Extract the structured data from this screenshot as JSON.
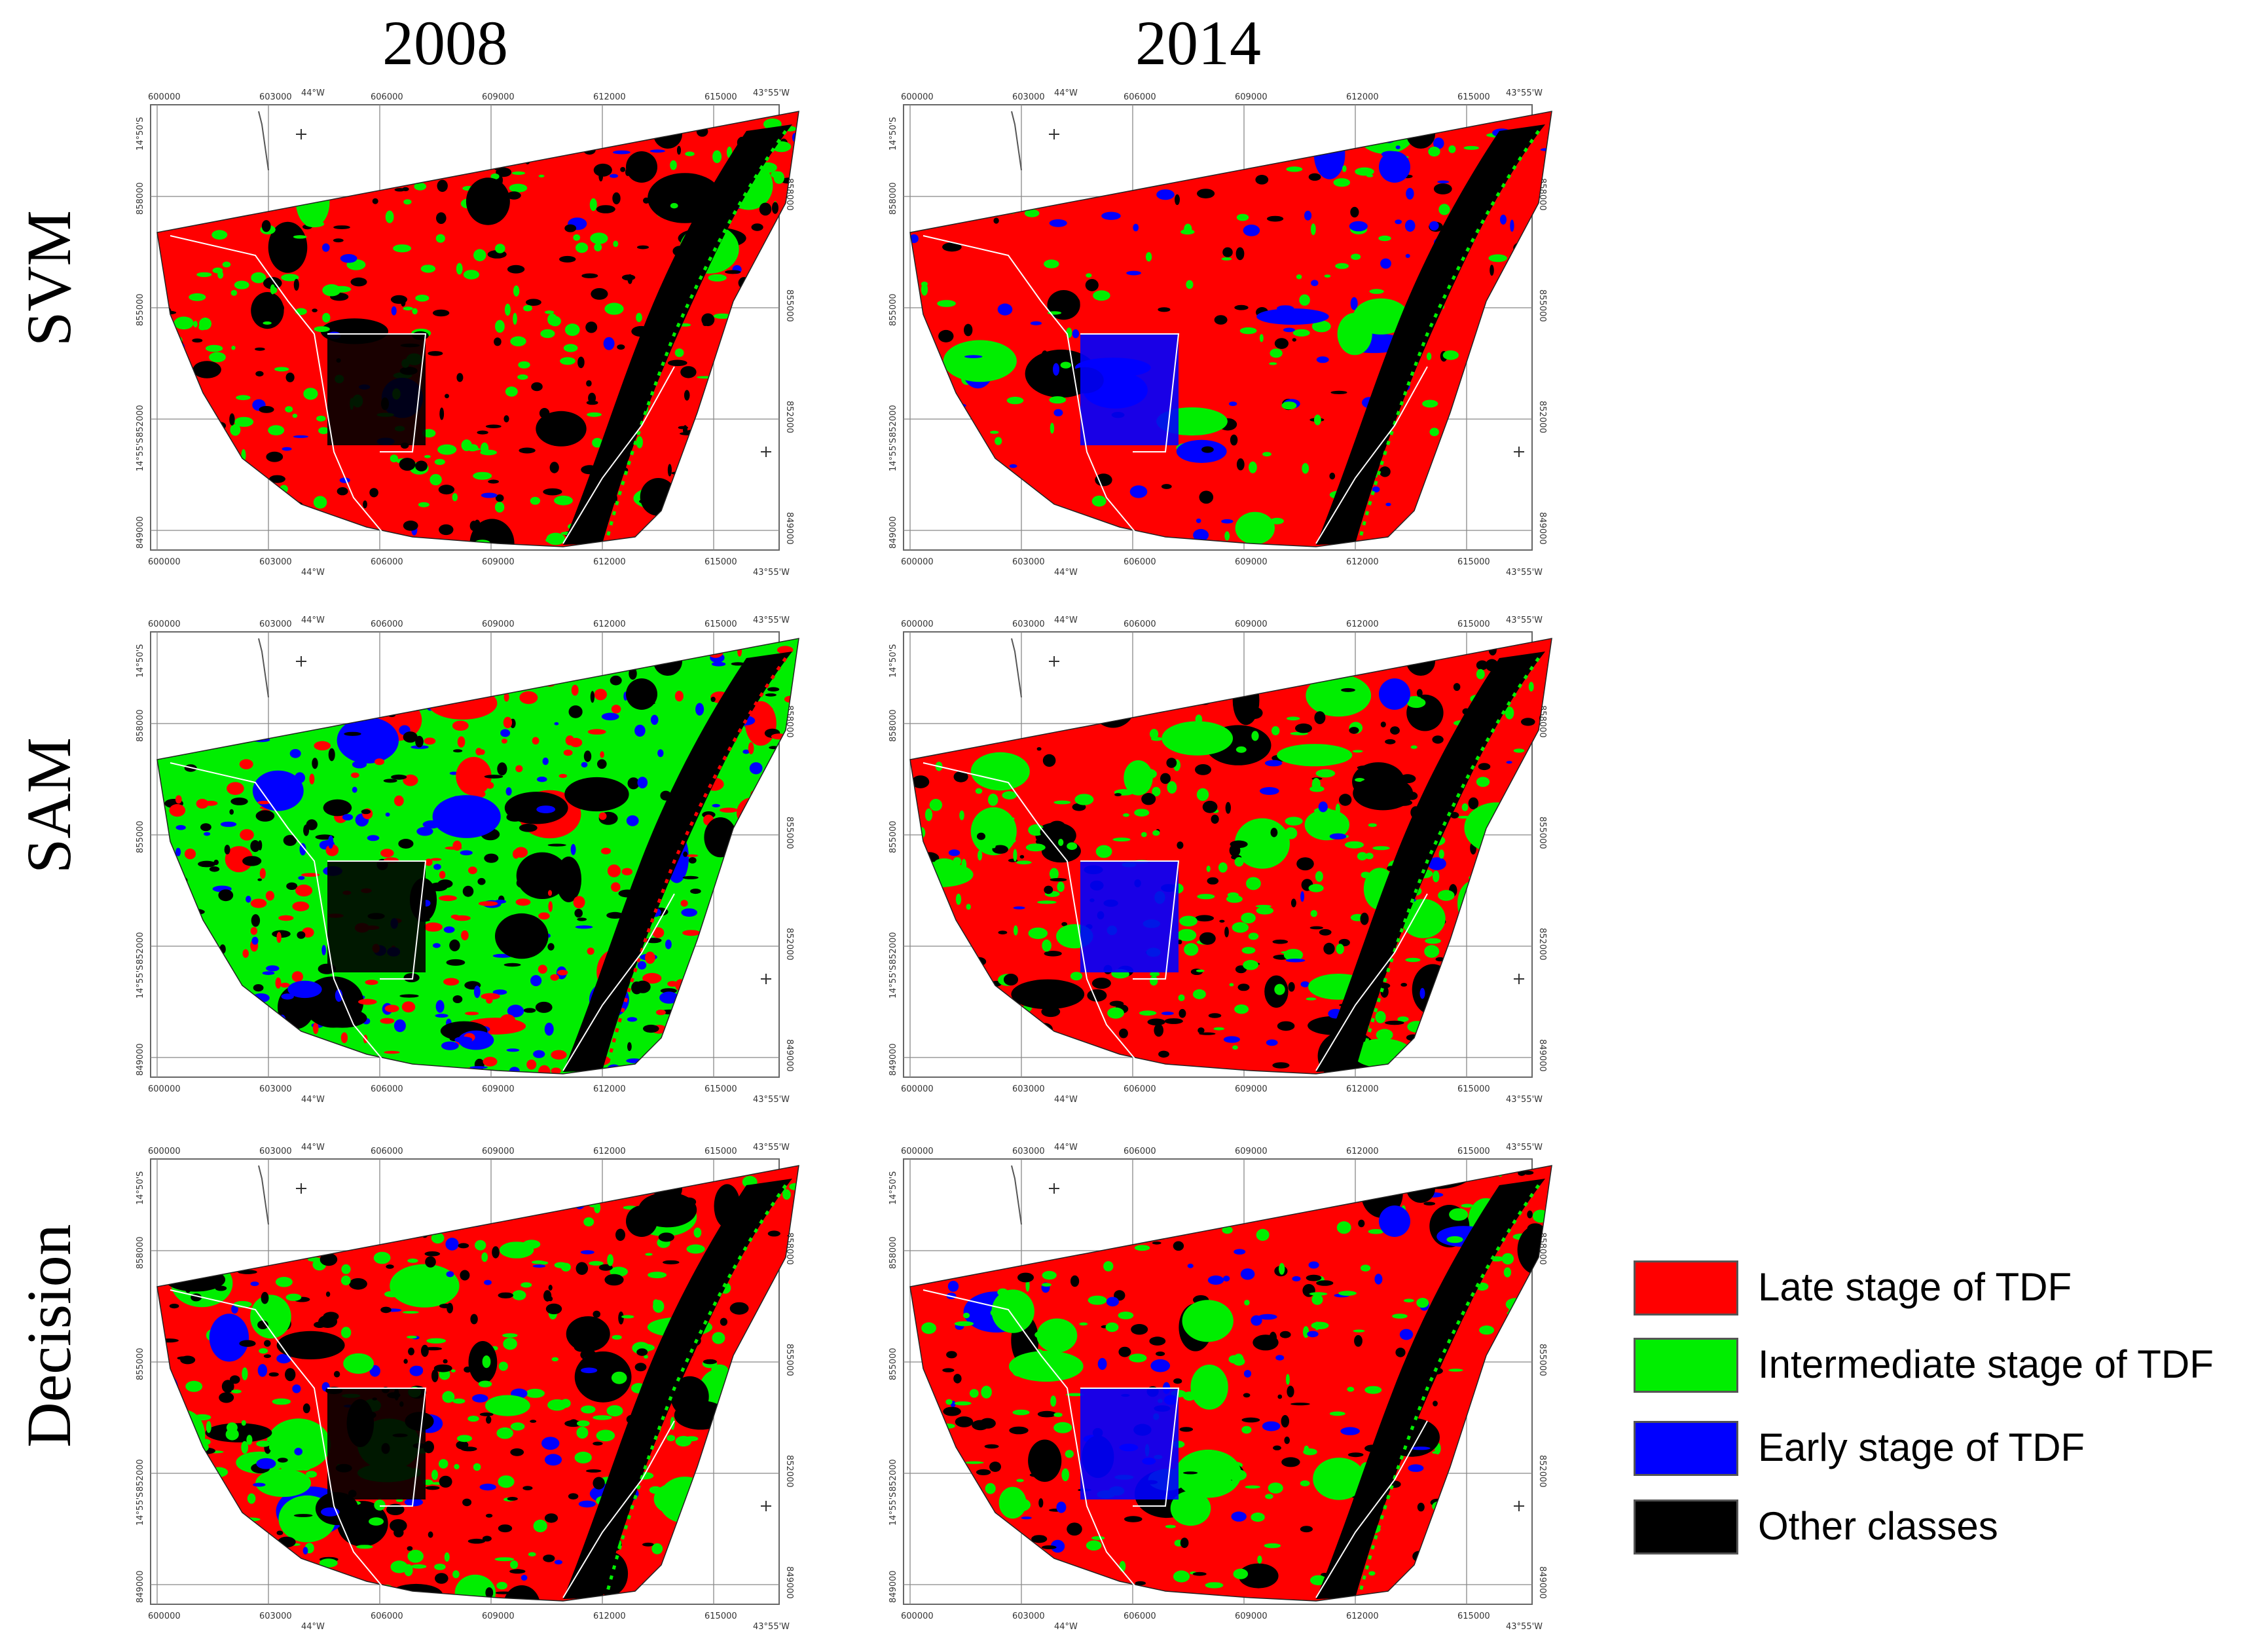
{
  "years": [
    "2008",
    "2014"
  ],
  "methods": [
    "SVM",
    "SAM",
    "Decision"
  ],
  "map_ticks": {
    "easting": [
      "600000",
      "603000",
      "606000",
      "609000",
      "612000",
      "615000"
    ],
    "northing": [
      "858000",
      "855000",
      "852000",
      "849000"
    ],
    "lon_top": "44°W",
    "lon_right": "43°55'W",
    "lat_top": "14°50'S",
    "lat_bottom": "14°55'S"
  },
  "legend": [
    {
      "label": " Late stage of TDF",
      "color": "#ff0000"
    },
    {
      "label": "Intermediate stage of TDF",
      "color": "#00ee00"
    },
    {
      "label": "Early stage of TDF",
      "color": "#0000ff"
    },
    {
      "label": "Other classes",
      "color": "#000000"
    }
  ],
  "colors": {
    "late": "#ff0000",
    "intermediate": "#00ee00",
    "early": "#0000ff",
    "other": "#000000"
  },
  "panels": [
    {
      "id": "svm-2008",
      "method": "SVM",
      "year": "2008",
      "base": "late",
      "mix": [
        "intermediate",
        "other",
        "early"
      ],
      "weights": [
        0.3,
        0.22,
        0.04
      ]
    },
    {
      "id": "svm-2014",
      "method": "SVM",
      "year": "2014",
      "base": "late",
      "mix": [
        "intermediate",
        "early",
        "other"
      ],
      "weights": [
        0.14,
        0.1,
        0.1
      ]
    },
    {
      "id": "sam-2008",
      "method": "SAM",
      "year": "2008",
      "base": "intermediate",
      "mix": [
        "late",
        "early",
        "other"
      ],
      "weights": [
        0.28,
        0.22,
        0.2
      ]
    },
    {
      "id": "sam-2014",
      "method": "SAM",
      "year": "2014",
      "base": "late",
      "mix": [
        "intermediate",
        "other",
        "early"
      ],
      "weights": [
        0.3,
        0.22,
        0.04
      ]
    },
    {
      "id": "decision-2008",
      "method": "Decision",
      "year": "2008",
      "base": "late",
      "mix": [
        "intermediate",
        "other",
        "early"
      ],
      "weights": [
        0.3,
        0.28,
        0.1
      ]
    },
    {
      "id": "decision-2014",
      "method": "Decision",
      "year": "2014",
      "base": "late",
      "mix": [
        "intermediate",
        "other",
        "early"
      ],
      "weights": [
        0.22,
        0.16,
        0.08
      ]
    }
  ]
}
